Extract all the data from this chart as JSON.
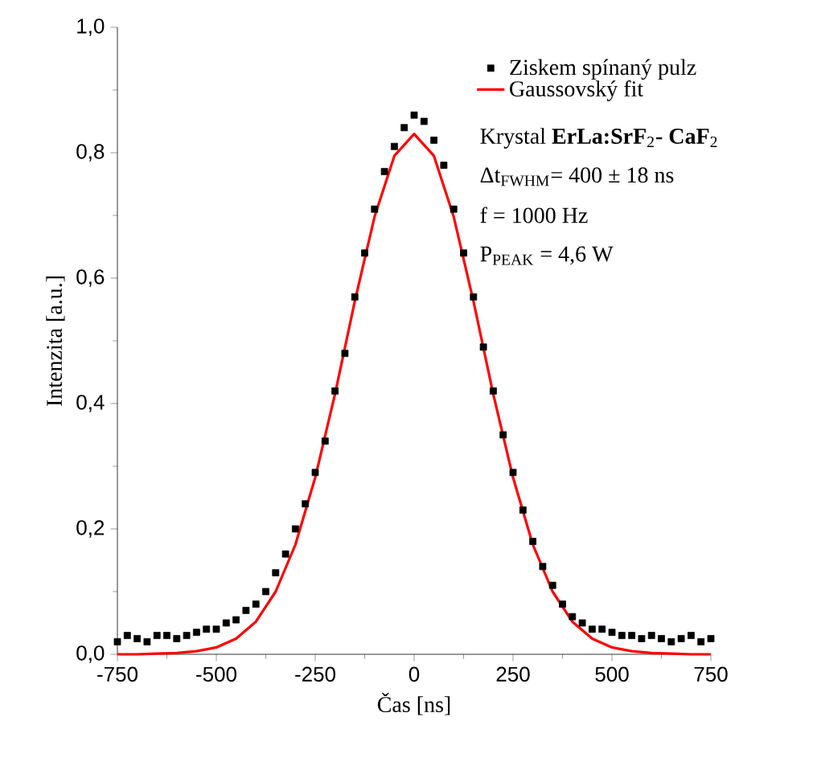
{
  "chart_data": {
    "type": "scatter",
    "xlabel": "Čas [ns]",
    "ylabel": "Intenzita [a.u.]",
    "xlim": [
      -750,
      750
    ],
    "xticks": [
      -750,
      -500,
      -250,
      0,
      250,
      500,
      750
    ],
    "ylim": [
      0,
      1.0
    ],
    "yticks": [
      {
        "value": 0,
        "label": "0,0"
      },
      {
        "value": 0.2,
        "label": "0,2"
      },
      {
        "value": 0.4,
        "label": "0,4"
      },
      {
        "value": 0.6,
        "label": "0,6"
      },
      {
        "value": 0.8,
        "label": "0,8"
      },
      {
        "value": 1.0,
        "label": "1,0"
      }
    ],
    "grid": false,
    "legend": "top right",
    "series": [
      {
        "name": "Ziskem spínaný pulz",
        "type": "scatter",
        "marker": "square",
        "color": "#000000",
        "x": [
          -750,
          -725,
          -700,
          -675,
          -650,
          -625,
          -600,
          -575,
          -550,
          -525,
          -500,
          -475,
          -450,
          -425,
          -400,
          -375,
          -350,
          -325,
          -300,
          -275,
          -250,
          -225,
          -200,
          -175,
          -150,
          -125,
          -100,
          -75,
          -50,
          -25,
          0,
          25,
          50,
          75,
          100,
          125,
          150,
          175,
          200,
          225,
          250,
          275,
          300,
          325,
          350,
          375,
          400,
          425,
          450,
          475,
          500,
          525,
          550,
          575,
          600,
          625,
          650,
          675,
          700,
          725,
          750
        ],
        "values": [
          0.02,
          0.03,
          0.025,
          0.02,
          0.03,
          0.03,
          0.025,
          0.03,
          0.035,
          0.04,
          0.04,
          0.05,
          0.055,
          0.07,
          0.08,
          0.1,
          0.13,
          0.16,
          0.2,
          0.24,
          0.29,
          0.34,
          0.42,
          0.48,
          0.57,
          0.64,
          0.71,
          0.77,
          0.81,
          0.84,
          0.86,
          0.85,
          0.82,
          0.78,
          0.71,
          0.64,
          0.57,
          0.49,
          0.42,
          0.35,
          0.29,
          0.23,
          0.18,
          0.14,
          0.11,
          0.08,
          0.06,
          0.05,
          0.04,
          0.04,
          0.035,
          0.03,
          0.03,
          0.025,
          0.03,
          0.025,
          0.02,
          0.025,
          0.03,
          0.02,
          0.025
        ]
      },
      {
        "name": "Gaussovský fit",
        "type": "line",
        "marker": "none",
        "color": "#ff0000",
        "x": [
          -750,
          -700,
          -650,
          -600,
          -550,
          -500,
          -450,
          -400,
          -350,
          -300,
          -250,
          -200,
          -150,
          -100,
          -50,
          0,
          50,
          100,
          150,
          200,
          250,
          300,
          350,
          400,
          450,
          500,
          550,
          600,
          650,
          700,
          750
        ],
        "values": [
          0,
          0,
          0.001,
          0.002,
          0.005,
          0.011,
          0.025,
          0.052,
          0.1,
          0.175,
          0.282,
          0.415,
          0.563,
          0.698,
          0.795,
          0.83,
          0.795,
          0.698,
          0.563,
          0.415,
          0.282,
          0.175,
          0.1,
          0.052,
          0.025,
          0.011,
          0.005,
          0.002,
          0.001,
          0,
          0
        ]
      }
    ],
    "annotations": [
      "Krystal **ErLa:SrF**$_{2}$**- CaF**$_{2}$",
      "Δt$_{FWHM}$= 400 ± 18 ns",
      "f = 1000 Hz",
      "P$_{PEAK}$ = 4,6 W"
    ]
  }
}
